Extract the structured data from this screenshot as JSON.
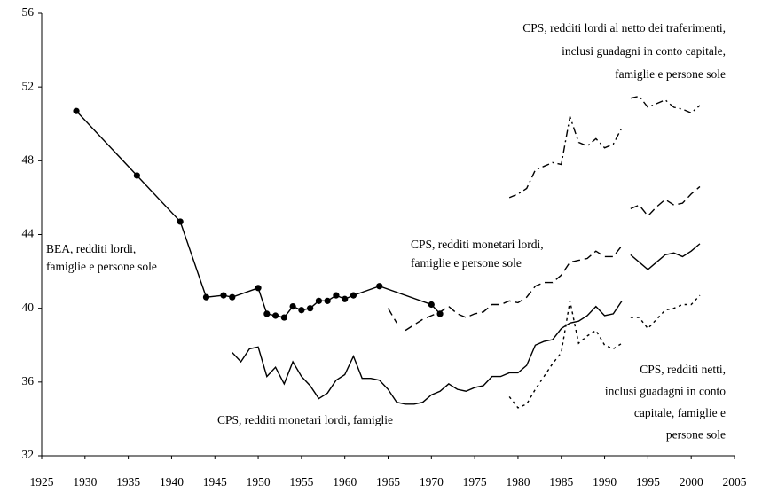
{
  "chart_data": {
    "type": "line",
    "xlim": [
      1925,
      2005
    ],
    "xticks": [
      1925,
      1930,
      1935,
      1940,
      1945,
      1950,
      1955,
      1960,
      1965,
      1970,
      1975,
      1980,
      1985,
      1990,
      1995,
      2000,
      2005
    ],
    "ylim": [
      32,
      56
    ],
    "yticks": [
      32,
      36,
      40,
      44,
      48,
      52,
      56
    ],
    "grid": false,
    "series": [
      {
        "color": "#000000",
        "style": "solid",
        "marker": "circle",
        "x": [
          1929,
          1936,
          1941,
          1944,
          1946,
          1947,
          1950,
          1951,
          1952,
          1953,
          1954,
          1955,
          1956,
          1957,
          1958,
          1959,
          1960,
          1961,
          1964,
          1970,
          1971
        ],
        "values": [
          50.7,
          47.2,
          44.7,
          40.6,
          40.7,
          40.6,
          41.1,
          39.7,
          39.6,
          39.5,
          40.1,
          39.9,
          40.0,
          40.4,
          40.4,
          40.7,
          40.5,
          40.7,
          41.2,
          40.2,
          39.7
        ]
      },
      {
        "color": "#000000",
        "style": "solid",
        "x": [
          1947,
          1948,
          1949,
          1950,
          1951,
          1952,
          1953,
          1954,
          1955,
          1956,
          1957,
          1958,
          1959,
          1960,
          1961,
          1962,
          1963,
          1964,
          1965,
          1966,
          1967,
          1968,
          1969,
          1970,
          1971,
          1972,
          1973,
          1974,
          1975,
          1976,
          1977,
          1978,
          1979,
          1980,
          1981,
          1982,
          1983,
          1984,
          1985,
          1986,
          1987,
          1988,
          1989,
          1990,
          1991,
          1992,
          1992.5,
          1993,
          1994,
          1995,
          1996,
          1997,
          1998,
          1999,
          2000,
          2001
        ],
        "values": [
          37.6,
          37.1,
          37.8,
          37.9,
          36.3,
          36.8,
          35.9,
          37.1,
          36.3,
          35.8,
          35.1,
          35.4,
          36.1,
          36.4,
          37.4,
          36.2,
          36.2,
          36.1,
          35.6,
          34.9,
          34.8,
          34.8,
          34.9,
          35.3,
          35.5,
          35.9,
          35.6,
          35.5,
          35.7,
          35.8,
          36.3,
          36.3,
          36.5,
          36.5,
          36.9,
          38.0,
          38.2,
          38.3,
          38.9,
          39.2,
          39.3,
          39.6,
          40.1,
          39.6,
          39.7,
          40.4,
          null,
          42.9,
          42.5,
          42.1,
          42.5,
          42.9,
          43.0,
          42.8,
          43.1,
          43.5
        ]
      },
      {
        "color": "#000000",
        "style": "dashed",
        "x": [
          1965,
          1966,
          1966.5,
          1967,
          1968,
          1969,
          1970,
          1971,
          1972,
          1973,
          1974,
          1975,
          1976,
          1977,
          1978,
          1979,
          1980,
          1981,
          1982,
          1983,
          1984,
          1985,
          1986,
          1987,
          1988,
          1989,
          1990,
          1991,
          1992,
          1992.5,
          1993,
          1994,
          1995,
          1996,
          1997,
          1998,
          1999,
          2000,
          2001
        ],
        "values": [
          40.0,
          39.2,
          null,
          38.8,
          39.1,
          39.4,
          39.6,
          39.8,
          40.1,
          39.7,
          39.5,
          39.7,
          39.8,
          40.2,
          40.2,
          40.4,
          40.3,
          40.6,
          41.2,
          41.4,
          41.4,
          41.8,
          42.5,
          42.6,
          42.7,
          43.1,
          42.8,
          42.8,
          43.4,
          null,
          45.4,
          45.6,
          45.0,
          45.5,
          45.9,
          45.6,
          45.7,
          46.2,
          46.6
        ]
      },
      {
        "color": "#000000",
        "style": "dashdot",
        "x": [
          1979,
          1980,
          1981,
          1982,
          1983,
          1984,
          1985,
          1986,
          1987,
          1988,
          1989,
          1990,
          1991,
          1992,
          1992.5,
          1993,
          1994,
          1995,
          1996,
          1997,
          1998,
          1999,
          2000,
          2001
        ],
        "values": [
          46.0,
          46.2,
          46.5,
          47.5,
          47.7,
          47.9,
          47.8,
          50.4,
          49.0,
          48.8,
          49.2,
          48.7,
          48.9,
          49.8,
          null,
          51.4,
          51.5,
          50.9,
          51.1,
          51.3,
          50.9,
          50.8,
          50.6,
          51.0
        ]
      },
      {
        "color": "#000000",
        "style": "dotted",
        "x": [
          1979,
          1980,
          1981,
          1982,
          1983,
          1984,
          1985,
          1986,
          1987,
          1988,
          1989,
          1990,
          1991,
          1992,
          1992.5,
          1993,
          1994,
          1995,
          1996,
          1997,
          1998,
          1999,
          2000,
          2001
        ],
        "values": [
          35.2,
          34.6,
          34.8,
          35.6,
          36.3,
          37.0,
          37.6,
          40.4,
          38.1,
          38.5,
          38.8,
          38.0,
          37.8,
          38.1,
          null,
          39.5,
          39.5,
          38.9,
          39.4,
          39.9,
          40.0,
          40.2,
          40.2,
          40.7
        ]
      }
    ],
    "annotations": [
      {
        "lines": [
          "CPS, redditi lordi al netto dei traferimenti,",
          "inclusi guadagni in conto capitale,",
          "famiglie e persone sole"
        ]
      },
      {
        "lines": [
          "BEA, redditi lordi,",
          "famiglie e persone sole"
        ]
      },
      {
        "lines": [
          "CPS, redditi monetari lordi,",
          "famiglie e persone sole"
        ]
      },
      {
        "lines": [
          "CPS, redditi monetari lordi, famiglie"
        ]
      },
      {
        "lines": [
          "CPS, redditi netti,",
          "inclusi guadagni in conto",
          "capitale, famiglie e",
          "persone sole"
        ]
      }
    ]
  }
}
